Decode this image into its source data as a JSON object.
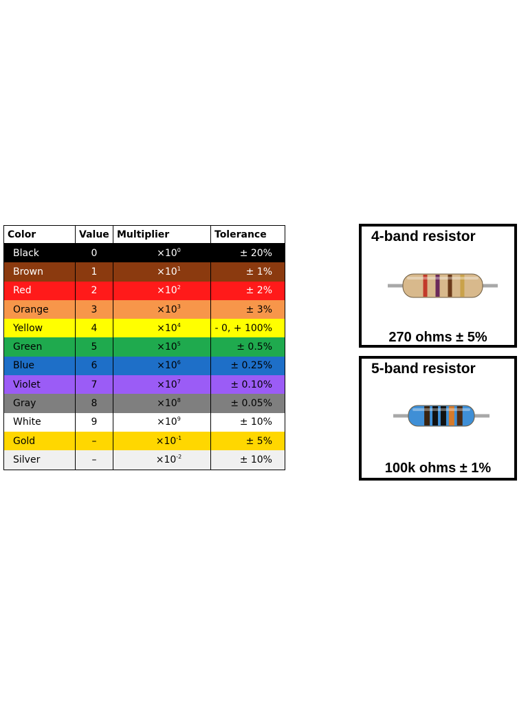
{
  "chart_data": {
    "type": "table",
    "columns": [
      "Color",
      "Value",
      "Multiplier",
      "Tolerance"
    ],
    "rows": [
      {
        "color": "Black",
        "value": "0",
        "mult_base": "×10",
        "mult_exp": "0",
        "tolerance": "± 20%",
        "bg": "#000000",
        "fg": "#ffffff"
      },
      {
        "color": "Brown",
        "value": "1",
        "mult_base": "×10",
        "mult_exp": "1",
        "tolerance": "± 1%",
        "bg": "#8b3a0f",
        "fg": "#ffffff"
      },
      {
        "color": "Red",
        "value": "2",
        "mult_base": "×10",
        "mult_exp": "2",
        "tolerance": "± 2%",
        "bg": "#ff1a1a",
        "fg": "#ffffff"
      },
      {
        "color": "Orange",
        "value": "3",
        "mult_base": "×10",
        "mult_exp": "3",
        "tolerance": "± 3%",
        "bg": "#f7964a",
        "fg": "#000000"
      },
      {
        "color": "Yellow",
        "value": "4",
        "mult_base": "×10",
        "mult_exp": "4",
        "tolerance": "- 0, + 100%",
        "bg": "#ffff00",
        "fg": "#000000"
      },
      {
        "color": "Green",
        "value": "5",
        "mult_base": "×10",
        "mult_exp": "5",
        "tolerance": "± 0.5%",
        "bg": "#1faa4e",
        "fg": "#000000"
      },
      {
        "color": "Blue",
        "value": "6",
        "mult_base": "×10",
        "mult_exp": "6",
        "tolerance": "± 0.25%",
        "bg": "#1e6fc8",
        "fg": "#000000"
      },
      {
        "color": "Violet",
        "value": "7",
        "mult_base": "×10",
        "mult_exp": "7",
        "tolerance": "± 0.10%",
        "bg": "#9b5cf6",
        "fg": "#000000"
      },
      {
        "color": "Gray",
        "value": "8",
        "mult_base": "×10",
        "mult_exp": "8",
        "tolerance": "± 0.05%",
        "bg": "#7f7f7f",
        "fg": "#000000"
      },
      {
        "color": "White",
        "value": "9",
        "mult_base": "×10",
        "mult_exp": "9",
        "tolerance": "± 10%",
        "bg": "#ffffff",
        "fg": "#000000"
      },
      {
        "color": "Gold",
        "value": "–",
        "mult_base": "×10",
        "mult_exp": "-1",
        "tolerance": "± 5%",
        "bg": "#ffd700",
        "fg": "#000000"
      },
      {
        "color": "Silver",
        "value": "–",
        "mult_base": "×10",
        "mult_exp": "-2",
        "tolerance": "± 10%",
        "bg": "#f0f0f0",
        "fg": "#000000"
      }
    ]
  },
  "resistors": [
    {
      "title": "4-band resistor",
      "value_label": "270 ohms ± 5%",
      "body_color": "#d8b98c",
      "bands": [
        "#c23a2a",
        "#6a2a5a",
        "#6b3a1a",
        "#c9a24a"
      ]
    },
    {
      "title": "5-band resistor",
      "value_label": "100k ohms ± 1%",
      "body_color": "#3f8fd6",
      "bands": [
        "#3a2410",
        "#111111",
        "#111111",
        "#d67a2a",
        "#4a2a14"
      ]
    }
  ]
}
